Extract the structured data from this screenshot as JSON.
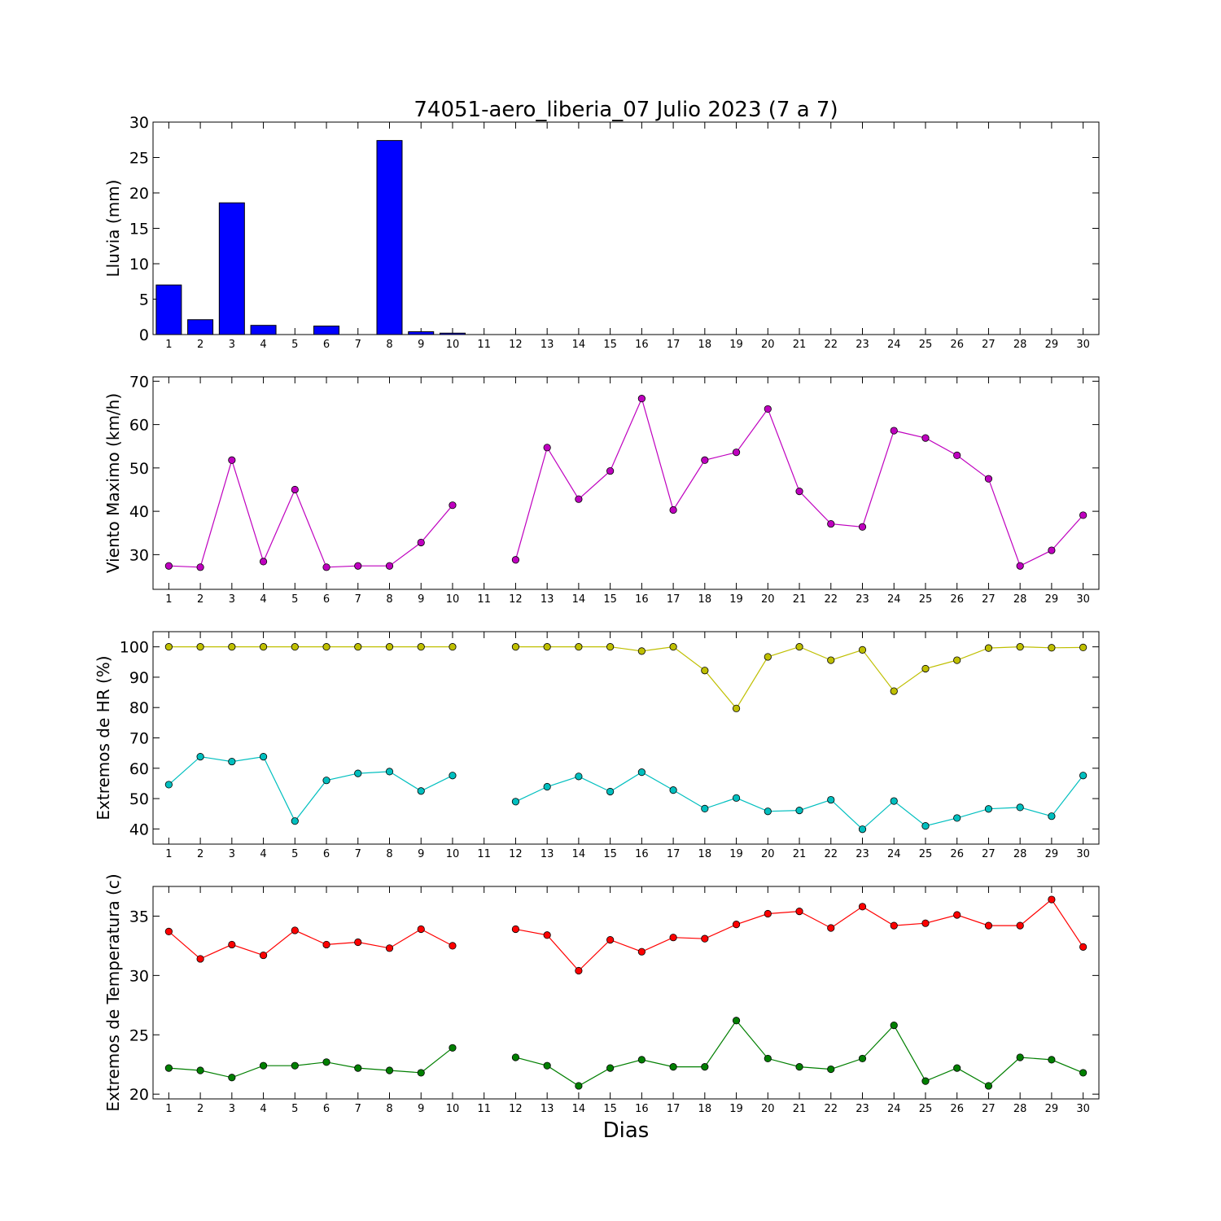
{
  "title": "74051-aero_liberia_07 Julio 2023  (7 a 7)",
  "xlabel": "Dias",
  "chart_data": [
    {
      "type": "bar",
      "ylabel": "Lluvia (mm)",
      "ylim": [
        0,
        30
      ],
      "yticks": [
        0,
        5,
        10,
        15,
        20,
        25,
        30
      ],
      "x": [
        1,
        2,
        3,
        4,
        5,
        6,
        7,
        8,
        9,
        10,
        11,
        12,
        13,
        14,
        15,
        16,
        17,
        18,
        19,
        20,
        21,
        22,
        23,
        24,
        25,
        26,
        27,
        28,
        29,
        30
      ],
      "series": [
        {
          "color": "#0000ff",
          "values": [
            7.0,
            2.1,
            18.6,
            1.3,
            0.0,
            1.2,
            0.0,
            27.4,
            0.4,
            0.2,
            null,
            0,
            0,
            0,
            0,
            0,
            0,
            0,
            0,
            0,
            0,
            0,
            0,
            0,
            0,
            0,
            0,
            0,
            0,
            0
          ]
        }
      ]
    },
    {
      "type": "line",
      "ylabel": "Viento Maximo (km/h)",
      "ylim": [
        22,
        71
      ],
      "yticks": [
        30,
        40,
        50,
        60,
        70
      ],
      "x": [
        1,
        2,
        3,
        4,
        5,
        6,
        7,
        8,
        9,
        10,
        11,
        12,
        13,
        14,
        15,
        16,
        17,
        18,
        19,
        20,
        21,
        22,
        23,
        24,
        25,
        26,
        27,
        28,
        29,
        30
      ],
      "series": [
        {
          "color": "#bf00bf",
          "values": [
            27.4,
            27.1,
            51.8,
            28.4,
            45.0,
            27.1,
            27.4,
            27.4,
            32.8,
            41.4,
            null,
            28.8,
            54.7,
            42.8,
            49.3,
            66.0,
            40.3,
            51.8,
            53.6,
            63.6,
            44.6,
            37.1,
            36.4,
            58.6,
            56.9,
            52.9,
            47.5,
            27.4,
            31.0,
            39.1
          ]
        }
      ]
    },
    {
      "type": "line",
      "ylabel": "Extremos de HR (%)",
      "ylim": [
        35,
        105
      ],
      "yticks": [
        40,
        50,
        60,
        70,
        80,
        90,
        100
      ],
      "x": [
        1,
        2,
        3,
        4,
        5,
        6,
        7,
        8,
        9,
        10,
        11,
        12,
        13,
        14,
        15,
        16,
        17,
        18,
        19,
        20,
        21,
        22,
        23,
        24,
        25,
        26,
        27,
        28,
        29,
        30
      ],
      "series": [
        {
          "color": "#bfbf00",
          "values": [
            100,
            100,
            100,
            100,
            100,
            100,
            100,
            100,
            100,
            100,
            null,
            100,
            100,
            100,
            100,
            98.6,
            100,
            92.2,
            79.7,
            96.7,
            100,
            95.6,
            99.0,
            85.4,
            92.8,
            95.6,
            99.6,
            100,
            99.7,
            99.8
          ]
        },
        {
          "color": "#00bfbf",
          "values": [
            54.6,
            63.8,
            62.2,
            63.8,
            42.6,
            56.0,
            58.3,
            58.9,
            52.5,
            57.6,
            null,
            49.0,
            53.9,
            57.3,
            52.3,
            58.7,
            52.8,
            46.7,
            50.2,
            45.8,
            46.1,
            49.6,
            39.9,
            49.2,
            41.0,
            43.6,
            46.6,
            47.1,
            44.2,
            57.6
          ]
        }
      ]
    },
    {
      "type": "line",
      "ylabel": "Extremos de Temperatura (c)",
      "ylim": [
        19.6,
        37.5
      ],
      "yticks": [
        20,
        25,
        30,
        35
      ],
      "x": [
        1,
        2,
        3,
        4,
        5,
        6,
        7,
        8,
        9,
        10,
        11,
        12,
        13,
        14,
        15,
        16,
        17,
        18,
        19,
        20,
        21,
        22,
        23,
        24,
        25,
        26,
        27,
        28,
        29,
        30
      ],
      "series": [
        {
          "color": "#ff0000",
          "values": [
            33.7,
            31.4,
            32.6,
            31.7,
            33.8,
            32.6,
            32.8,
            32.3,
            33.9,
            32.5,
            null,
            33.9,
            33.4,
            30.4,
            33.0,
            32.0,
            33.2,
            33.1,
            34.3,
            35.2,
            35.4,
            34.0,
            35.8,
            34.2,
            34.4,
            35.1,
            34.2,
            34.2,
            36.4,
            32.4
          ]
        },
        {
          "color": "#007f00",
          "values": [
            22.2,
            22.0,
            21.4,
            22.4,
            22.4,
            22.7,
            22.2,
            22.0,
            21.8,
            23.9,
            null,
            23.1,
            22.4,
            20.7,
            22.2,
            22.9,
            22.3,
            22.3,
            26.2,
            23.0,
            22.3,
            22.1,
            23.0,
            25.8,
            21.1,
            22.2,
            20.7,
            23.1,
            22.9,
            21.8
          ]
        }
      ]
    }
  ]
}
